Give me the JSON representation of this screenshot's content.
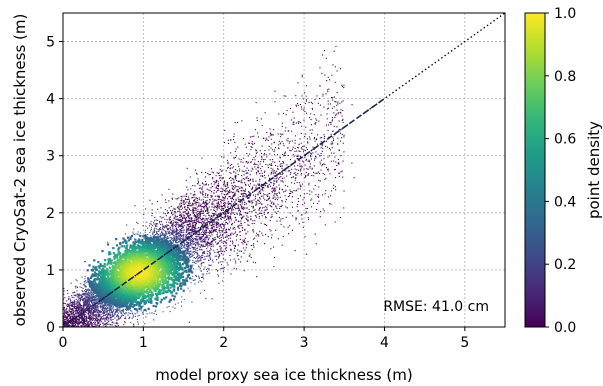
{
  "chart_data": {
    "type": "scatter",
    "title": "",
    "xlabel": "model proxy sea ice thickness (m)",
    "ylabel": "observed CryoSat-2 sea ice thickness (m)",
    "xlim": [
      0,
      5.5
    ],
    "ylim": [
      0,
      5.5
    ],
    "xticks": [
      0,
      1,
      2,
      3,
      4,
      5
    ],
    "yticks": [
      0,
      1,
      2,
      3,
      4,
      5
    ],
    "grid": true,
    "annotation": "RMSE: 41.0 cm",
    "one_to_one_line": {
      "style": "dotted",
      "color": "#000000"
    },
    "fit_line": {
      "style": "dashed",
      "color": "#1b2a55",
      "x": [
        0,
        4.0
      ],
      "y": [
        0,
        4.0
      ]
    },
    "density_peak": {
      "x": 0.95,
      "y": 0.95
    },
    "colorbar": {
      "label": "point density",
      "range": [
        0.0,
        1.0
      ],
      "ticks": [
        "0.0",
        "0.2",
        "0.4",
        "0.6",
        "0.8",
        "1.0"
      ],
      "colormap": "viridis",
      "colors": [
        "#440154",
        "#482878",
        "#3e4989",
        "#31688e",
        "#26828e",
        "#1f9e89",
        "#35b779",
        "#6ece58",
        "#b5de2b",
        "#fde725"
      ]
    }
  }
}
